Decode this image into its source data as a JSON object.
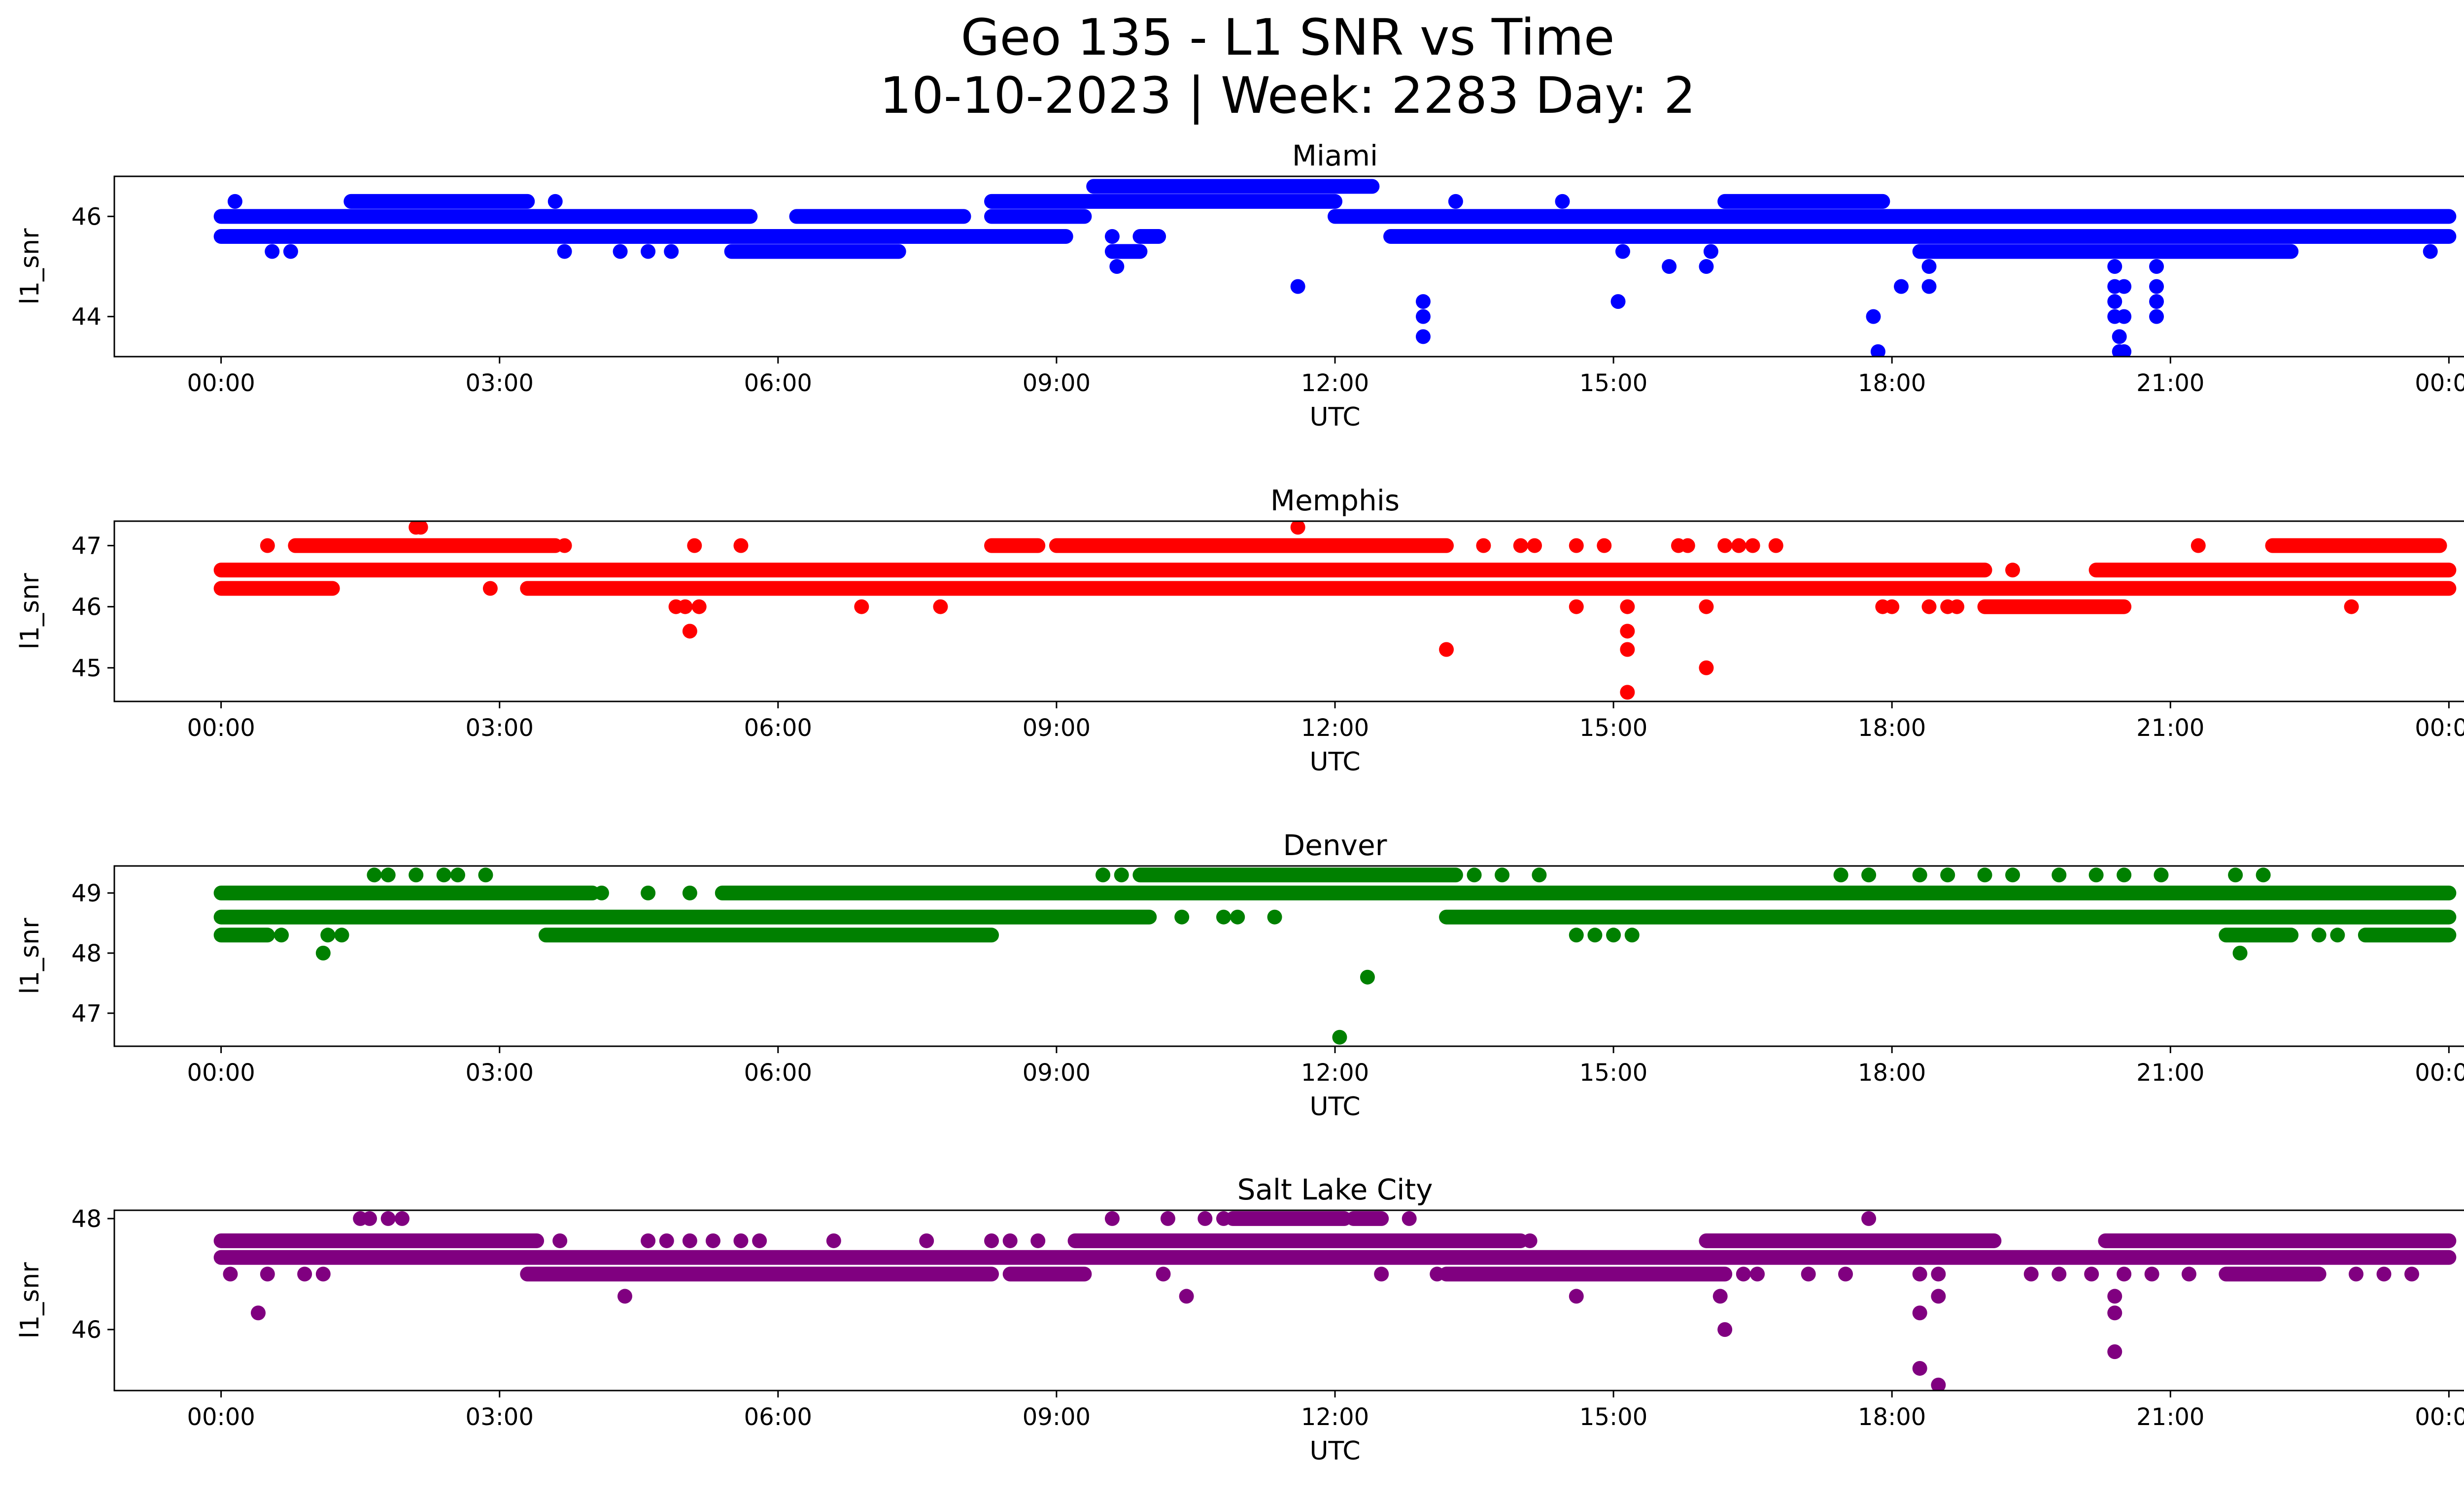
{
  "figure": {
    "title_line1": "Geo 135 - L1 SNR vs Time",
    "title_line2": "10-10-2023 | Week: 2283 Day: 2"
  },
  "chart_data": [
    {
      "type": "scatter",
      "title": "Miami",
      "xlabel": "UTC",
      "ylabel": "l1_snr",
      "color": "#0000ff",
      "x_range_hours": [
        0,
        24
      ],
      "xlim_hours": [
        -1.15,
        25.15
      ],
      "ylim": [
        43.2,
        46.8
      ],
      "yticks": [
        44,
        46
      ],
      "xticks": [
        "00:00",
        "03:00",
        "06:00",
        "09:00",
        "12:00",
        "15:00",
        "18:00",
        "21:00",
        "00:00"
      ],
      "dense_bands": [
        {
          "y": 46.0,
          "x_ranges": [
            [
              0.0,
              5.7
            ],
            [
              6.2,
              8.0
            ],
            [
              8.3,
              9.3
            ],
            [
              12.0,
              24.0
            ]
          ]
        },
        {
          "y": 45.6,
          "x_ranges": [
            [
              0.0,
              9.1
            ],
            [
              9.9,
              10.1
            ],
            [
              12.6,
              24.0
            ]
          ]
        },
        {
          "y": 45.3,
          "x_ranges": [
            [
              5.5,
              7.3
            ],
            [
              9.6,
              9.9
            ],
            [
              18.3,
              22.3
            ]
          ]
        },
        {
          "y": 46.3,
          "x_ranges": [
            [
              1.4,
              3.3
            ],
            [
              8.3,
              12.0
            ],
            [
              16.2,
              17.9
            ]
          ]
        },
        {
          "y": 46.6,
          "x_ranges": [
            [
              9.4,
              12.4
            ]
          ]
        }
      ],
      "points": [
        [
          0.15,
          46.3
        ],
        [
          0.55,
          45.3
        ],
        [
          0.75,
          45.3
        ],
        [
          3.6,
          46.3
        ],
        [
          3.7,
          45.3
        ],
        [
          4.3,
          45.3
        ],
        [
          4.6,
          45.3
        ],
        [
          4.85,
          45.3
        ],
        [
          9.6,
          45.6
        ],
        [
          9.65,
          45.0
        ],
        [
          9.8,
          45.3
        ],
        [
          11.6,
          44.6
        ],
        [
          12.95,
          44.3
        ],
        [
          12.95,
          44.0
        ],
        [
          12.95,
          43.6
        ],
        [
          13.3,
          46.3
        ],
        [
          13.1,
          45.6
        ],
        [
          14.45,
          46.3
        ],
        [
          15.05,
          44.3
        ],
        [
          15.1,
          45.3
        ],
        [
          15.6,
          45.0
        ],
        [
          16.0,
          45.0
        ],
        [
          16.05,
          45.3
        ],
        [
          17.8,
          44.0
        ],
        [
          17.85,
          43.3
        ],
        [
          18.1,
          44.6
        ],
        [
          18.4,
          45.0
        ],
        [
          18.4,
          44.6
        ],
        [
          20.4,
          45.0
        ],
        [
          20.4,
          44.6
        ],
        [
          20.4,
          44.3
        ],
        [
          20.4,
          44.0
        ],
        [
          20.45,
          43.6
        ],
        [
          20.45,
          43.3
        ],
        [
          20.5,
          43.3
        ],
        [
          20.5,
          44.6
        ],
        [
          20.5,
          44.0
        ],
        [
          20.85,
          45.0
        ],
        [
          20.85,
          44.6
        ],
        [
          20.85,
          44.3
        ],
        [
          20.85,
          44.0
        ],
        [
          23.8,
          45.3
        ]
      ]
    },
    {
      "type": "scatter",
      "title": "Memphis",
      "xlabel": "UTC",
      "ylabel": "l1_snr",
      "color": "#ff0000",
      "x_range_hours": [
        0,
        24
      ],
      "xlim_hours": [
        -1.15,
        25.15
      ],
      "ylim": [
        44.45,
        47.4
      ],
      "yticks": [
        45,
        46,
        47
      ],
      "xticks": [
        "00:00",
        "03:00",
        "06:00",
        "09:00",
        "12:00",
        "15:00",
        "18:00",
        "21:00",
        "00:00"
      ],
      "dense_bands": [
        {
          "y": 46.6,
          "x_ranges": [
            [
              0.0,
              19.0
            ],
            [
              20.2,
              24.0
            ]
          ]
        },
        {
          "y": 46.3,
          "x_ranges": [
            [
              0.0,
              1.2
            ],
            [
              3.3,
              24.0
            ]
          ]
        },
        {
          "y": 47.0,
          "x_ranges": [
            [
              0.8,
              3.6
            ],
            [
              8.3,
              8.8
            ],
            [
              9.0,
              13.2
            ],
            [
              22.1,
              23.9
            ]
          ]
        },
        {
          "y": 46.0,
          "x_ranges": [
            [
              19.0,
              20.5
            ]
          ]
        }
      ],
      "points": [
        [
          0.5,
          47.0
        ],
        [
          2.1,
          47.3
        ],
        [
          2.15,
          47.3
        ],
        [
          2.9,
          46.3
        ],
        [
          3.7,
          47.0
        ],
        [
          4.9,
          46.0
        ],
        [
          5.0,
          46.0
        ],
        [
          5.05,
          45.6
        ],
        [
          5.1,
          47.0
        ],
        [
          5.15,
          46.0
        ],
        [
          5.6,
          47.0
        ],
        [
          6.9,
          46.0
        ],
        [
          7.75,
          46.0
        ],
        [
          11.6,
          47.3
        ],
        [
          11.5,
          46.3
        ],
        [
          12.1,
          46.3
        ],
        [
          12.4,
          46.3
        ],
        [
          12.9,
          46.3
        ],
        [
          13.2,
          45.3
        ],
        [
          13.6,
          47.0
        ],
        [
          14.0,
          47.0
        ],
        [
          14.15,
          47.0
        ],
        [
          14.6,
          47.0
        ],
        [
          14.6,
          46.0
        ],
        [
          14.9,
          47.0
        ],
        [
          15.15,
          46.0
        ],
        [
          15.15,
          45.6
        ],
        [
          15.15,
          45.3
        ],
        [
          15.15,
          44.6
        ],
        [
          15.7,
          47.0
        ],
        [
          15.8,
          47.0
        ],
        [
          16.0,
          46.0
        ],
        [
          16.0,
          45.0
        ],
        [
          16.2,
          47.0
        ],
        [
          16.35,
          47.0
        ],
        [
          16.5,
          47.0
        ],
        [
          16.75,
          47.0
        ],
        [
          17.9,
          46.0
        ],
        [
          18.0,
          46.0
        ],
        [
          18.4,
          46.0
        ],
        [
          18.6,
          46.0
        ],
        [
          18.7,
          46.0
        ],
        [
          19.3,
          46.6
        ],
        [
          21.3,
          47.0
        ],
        [
          22.5,
          46.3
        ],
        [
          22.95,
          46.0
        ],
        [
          23.3,
          46.3
        ],
        [
          23.8,
          46.3
        ]
      ]
    },
    {
      "type": "scatter",
      "title": "Denver",
      "xlabel": "UTC",
      "ylabel": "l1_snr",
      "color": "#008000",
      "x_range_hours": [
        0,
        24
      ],
      "xlim_hours": [
        -1.15,
        25.15
      ],
      "ylim": [
        46.45,
        49.45
      ],
      "yticks": [
        47,
        48,
        49
      ],
      "xticks": [
        "00:00",
        "03:00",
        "06:00",
        "09:00",
        "12:00",
        "15:00",
        "18:00",
        "21:00",
        "00:00"
      ],
      "dense_bands": [
        {
          "y": 49.0,
          "x_ranges": [
            [
              0.0,
              4.0
            ],
            [
              5.4,
              24.0
            ]
          ]
        },
        {
          "y": 48.6,
          "x_ranges": [
            [
              0.0,
              10.0
            ],
            [
              13.2,
              24.0
            ]
          ]
        },
        {
          "y": 48.3,
          "x_ranges": [
            [
              0.0,
              0.5
            ],
            [
              3.5,
              8.3
            ],
            [
              21.6,
              22.3
            ],
            [
              23.1,
              24.0
            ]
          ]
        },
        {
          "y": 49.3,
          "x_ranges": [
            [
              9.9,
              13.3
            ]
          ]
        }
      ],
      "points": [
        [
          0.65,
          48.3
        ],
        [
          1.1,
          48.0
        ],
        [
          1.15,
          48.3
        ],
        [
          1.3,
          48.3
        ],
        [
          1.65,
          49.3
        ],
        [
          1.8,
          49.3
        ],
        [
          2.1,
          49.3
        ],
        [
          2.4,
          49.3
        ],
        [
          2.55,
          49.3
        ],
        [
          2.85,
          49.3
        ],
        [
          4.1,
          49.0
        ],
        [
          4.6,
          49.0
        ],
        [
          5.05,
          49.0
        ],
        [
          9.5,
          49.3
        ],
        [
          9.7,
          49.3
        ],
        [
          10.35,
          48.6
        ],
        [
          10.8,
          48.6
        ],
        [
          10.95,
          48.6
        ],
        [
          11.35,
          48.6
        ],
        [
          12.05,
          46.6
        ],
        [
          12.35,
          47.6
        ],
        [
          13.5,
          49.3
        ],
        [
          13.8,
          49.3
        ],
        [
          14.2,
          49.3
        ],
        [
          14.6,
          48.3
        ],
        [
          14.8,
          48.3
        ],
        [
          15.0,
          48.3
        ],
        [
          15.2,
          48.3
        ],
        [
          17.45,
          49.3
        ],
        [
          17.75,
          49.3
        ],
        [
          18.3,
          49.3
        ],
        [
          18.6,
          49.3
        ],
        [
          19.0,
          49.3
        ],
        [
          19.3,
          49.3
        ],
        [
          19.8,
          49.3
        ],
        [
          20.2,
          49.3
        ],
        [
          20.5,
          49.3
        ],
        [
          20.9,
          49.3
        ],
        [
          21.75,
          48.0
        ],
        [
          21.7,
          49.3
        ],
        [
          22.0,
          49.3
        ],
        [
          22.6,
          48.3
        ],
        [
          22.8,
          48.3
        ]
      ]
    },
    {
      "type": "scatter",
      "title": "Salt Lake City",
      "xlabel": "UTC",
      "ylabel": "l1_snr",
      "color": "#800080",
      "x_range_hours": [
        0,
        24
      ],
      "xlim_hours": [
        -1.15,
        25.15
      ],
      "ylim": [
        44.9,
        48.15
      ],
      "yticks": [
        46,
        48
      ],
      "xticks": [
        "00:00",
        "03:00",
        "06:00",
        "09:00",
        "12:00",
        "15:00",
        "18:00",
        "21:00",
        "00:00"
      ],
      "dense_bands": [
        {
          "y": 47.6,
          "x_ranges": [
            [
              0.0,
              3.4
            ],
            [
              9.2,
              14.0
            ],
            [
              16.0,
              19.1
            ],
            [
              20.3,
              24.0
            ]
          ]
        },
        {
          "y": 47.3,
          "x_ranges": [
            [
              0.0,
              24.0
            ]
          ]
        },
        {
          "y": 47.0,
          "x_ranges": [
            [
              3.3,
              8.3
            ],
            [
              8.5,
              9.3
            ],
            [
              13.2,
              16.2
            ],
            [
              21.6,
              22.6
            ]
          ]
        },
        {
          "y": 48.0,
          "x_ranges": [
            [
              10.9,
              12.1
            ],
            [
              12.2,
              12.5
            ]
          ]
        }
      ],
      "points": [
        [
          0.1,
          47.0
        ],
        [
          0.4,
          46.3
        ],
        [
          0.5,
          47.0
        ],
        [
          0.9,
          47.0
        ],
        [
          1.1,
          47.0
        ],
        [
          1.5,
          48.0
        ],
        [
          1.6,
          48.0
        ],
        [
          1.8,
          48.0
        ],
        [
          1.95,
          48.0
        ],
        [
          3.65,
          47.6
        ],
        [
          4.35,
          46.6
        ],
        [
          4.6,
          47.6
        ],
        [
          4.8,
          47.6
        ],
        [
          5.05,
          47.6
        ],
        [
          5.3,
          47.6
        ],
        [
          5.6,
          47.6
        ],
        [
          5.8,
          47.6
        ],
        [
          6.6,
          47.6
        ],
        [
          7.6,
          47.6
        ],
        [
          8.3,
          47.6
        ],
        [
          8.5,
          47.6
        ],
        [
          8.8,
          47.6
        ],
        [
          9.6,
          48.0
        ],
        [
          10.2,
          48.0
        ],
        [
          10.15,
          47.0
        ],
        [
          10.4,
          46.6
        ],
        [
          10.6,
          48.0
        ],
        [
          10.8,
          48.0
        ],
        [
          12.5,
          47.0
        ],
        [
          12.8,
          48.0
        ],
        [
          13.1,
          47.0
        ],
        [
          13.3,
          47.0
        ],
        [
          14.1,
          47.6
        ],
        [
          14.6,
          46.6
        ],
        [
          16.15,
          46.6
        ],
        [
          16.2,
          46.0
        ],
        [
          16.4,
          47.0
        ],
        [
          16.55,
          47.0
        ],
        [
          17.1,
          47.0
        ],
        [
          17.5,
          47.0
        ],
        [
          17.75,
          48.0
        ],
        [
          18.3,
          47.0
        ],
        [
          18.3,
          46.3
        ],
        [
          18.3,
          45.3
        ],
        [
          18.5,
          47.0
        ],
        [
          18.5,
          46.6
        ],
        [
          18.5,
          45.0
        ],
        [
          19.5,
          47.0
        ],
        [
          19.8,
          47.0
        ],
        [
          20.15,
          47.0
        ],
        [
          20.4,
          46.6
        ],
        [
          20.4,
          46.3
        ],
        [
          20.4,
          45.6
        ],
        [
          20.5,
          47.0
        ],
        [
          20.8,
          47.0
        ],
        [
          21.2,
          47.0
        ],
        [
          23.0,
          47.0
        ],
        [
          23.3,
          47.0
        ],
        [
          23.6,
          47.0
        ]
      ]
    }
  ]
}
